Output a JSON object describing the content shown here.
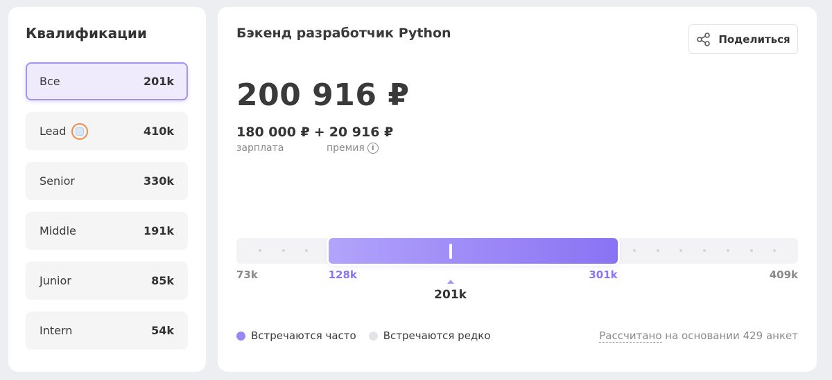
{
  "sidebar": {
    "title": "Квалификации",
    "items": [
      {
        "label": "Все",
        "value": "201k",
        "active": true
      },
      {
        "label": "Lead",
        "value": "410k",
        "badge": "lead-badge-icon"
      },
      {
        "label": "Senior",
        "value": "330k"
      },
      {
        "label": "Middle",
        "value": "191k"
      },
      {
        "label": "Junior",
        "value": "85k"
      },
      {
        "label": "Intern",
        "value": "54k"
      }
    ]
  },
  "main": {
    "title": "Бэкенд разработчик Python",
    "share_label": "Поделиться",
    "total": "200 916 ₽",
    "salary_amount": "180 000 ₽",
    "plus": "+",
    "bonus_amount": "20 916 ₽",
    "salary_label": "зарплата",
    "bonus_label": "премия",
    "info_glyph": "i"
  },
  "range": {
    "min": 73,
    "max": 409,
    "low": 128,
    "high": 301,
    "median": 201,
    "min_label": "73k",
    "max_label": "409k",
    "low_label": "128k",
    "high_label": "301k",
    "median_label": "201k"
  },
  "legend": {
    "frequent": "Встречаются часто",
    "rare": "Встречаются редко",
    "frequent_color": "#9a86f5",
    "rare_color": "#e4e4e8"
  },
  "footnote": {
    "link": "Рассчитано",
    "rest": " на основании 429 анкет"
  }
}
